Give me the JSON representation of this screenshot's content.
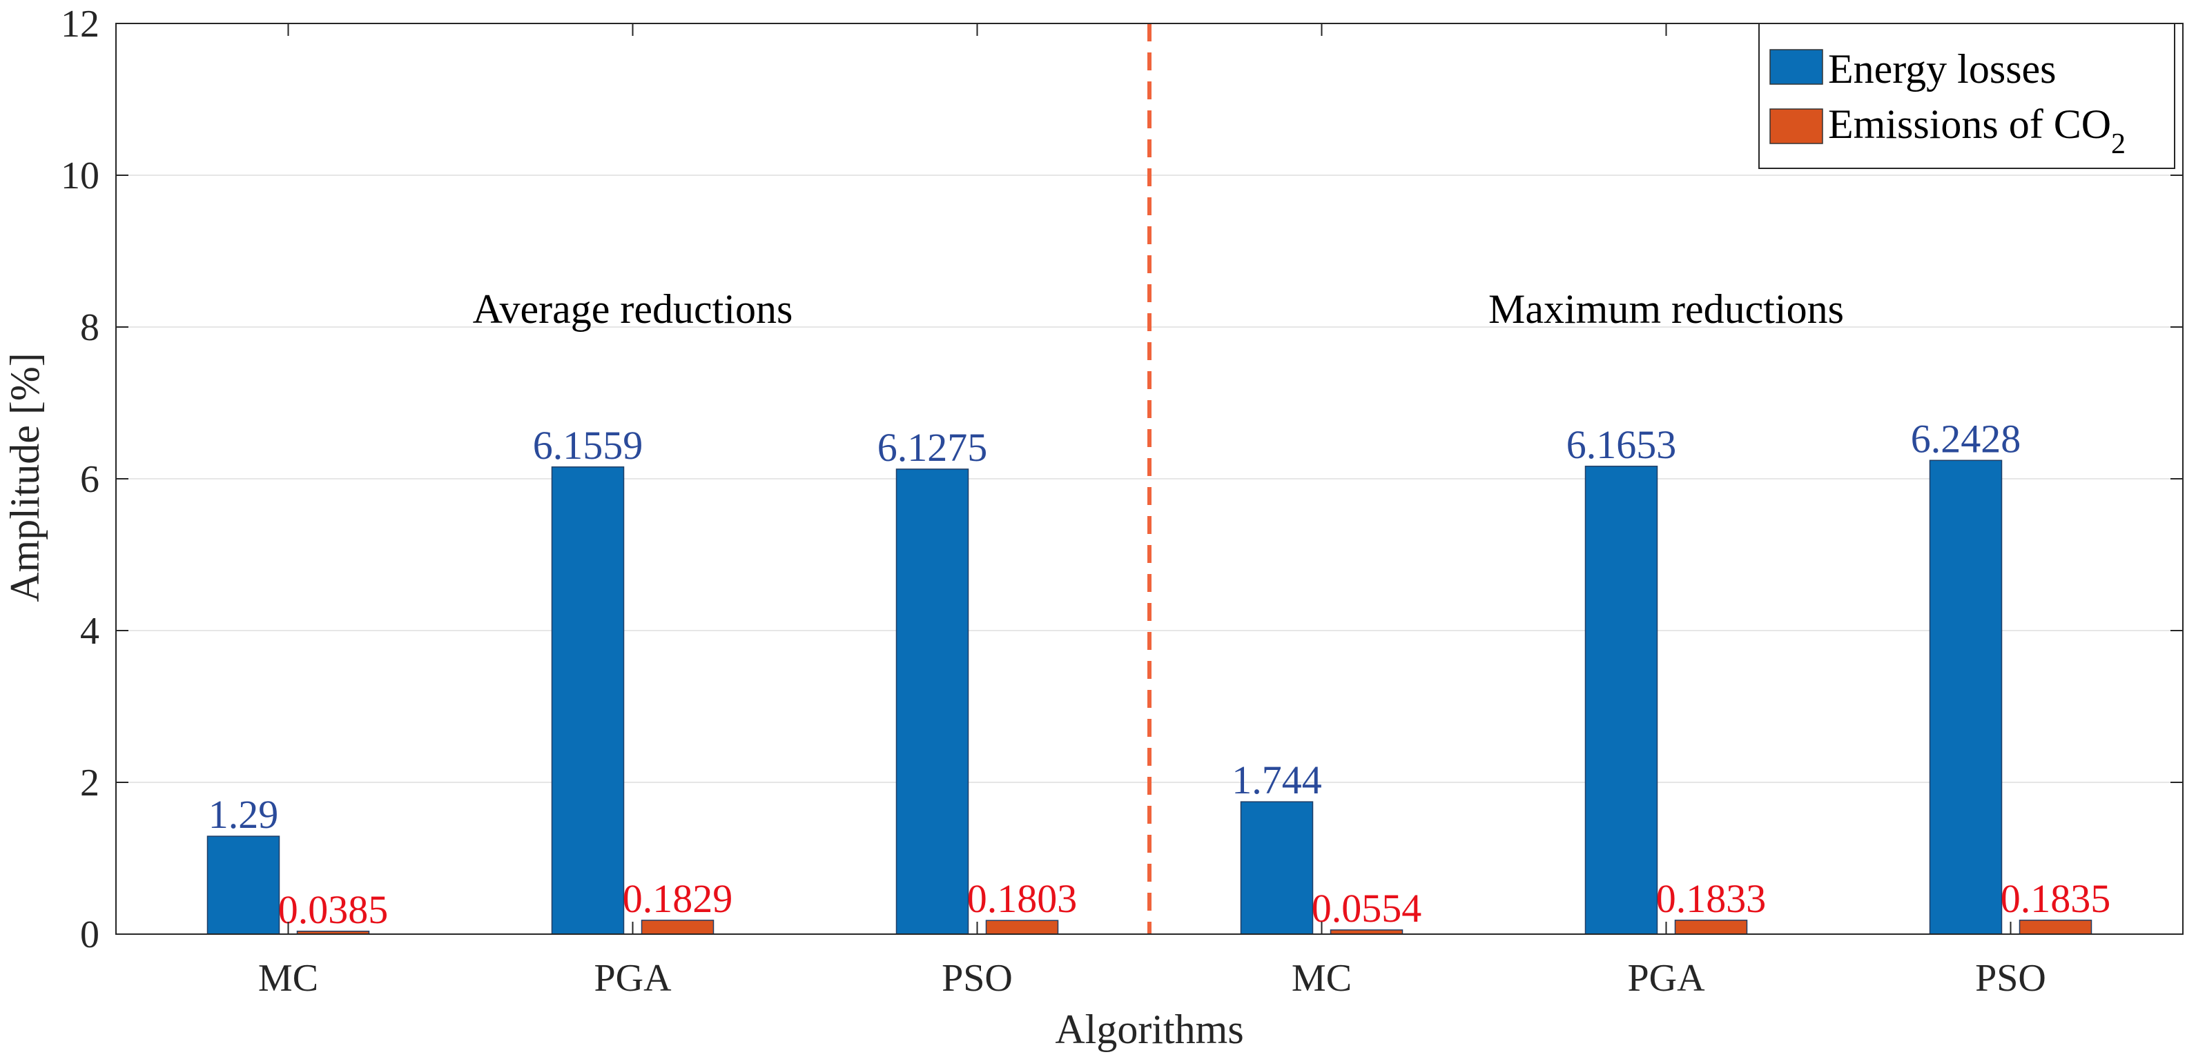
{
  "chart_data": {
    "type": "bar",
    "xlabel": "Algorithms",
    "ylabel": "Amplitude [%]",
    "ylim": [
      0,
      12
    ],
    "yticks": [
      0,
      2,
      4,
      6,
      8,
      10,
      12
    ],
    "categories": [
      "MC",
      "PGA",
      "PSO",
      "MC",
      "PGA",
      "PSO"
    ],
    "groups": [
      "Average reductions",
      "Maximum reductions"
    ],
    "grid": true,
    "legend_position": "top-right",
    "series": [
      {
        "name": "Energy losses",
        "color": "#0a6eb6",
        "label_color": "#2a4a9a",
        "values": [
          1.29,
          6.1559,
          6.1275,
          1.744,
          6.1653,
          6.2428
        ],
        "labels": [
          "1.29",
          "6.1559",
          "6.1275",
          "1.744",
          "6.1653",
          "6.2428"
        ]
      },
      {
        "name": "Emissions of CO",
        "name_subscript": "2",
        "color": "#d9531e",
        "label_color": "#e8101a",
        "values": [
          0.0385,
          0.1829,
          0.1803,
          0.0554,
          0.1833,
          0.1835
        ],
        "labels": [
          "0.0385",
          "0.1829",
          "0.1803",
          "0.0554",
          "0.1833",
          "0.1835"
        ]
      }
    ],
    "divider_color": "#f0643c"
  }
}
